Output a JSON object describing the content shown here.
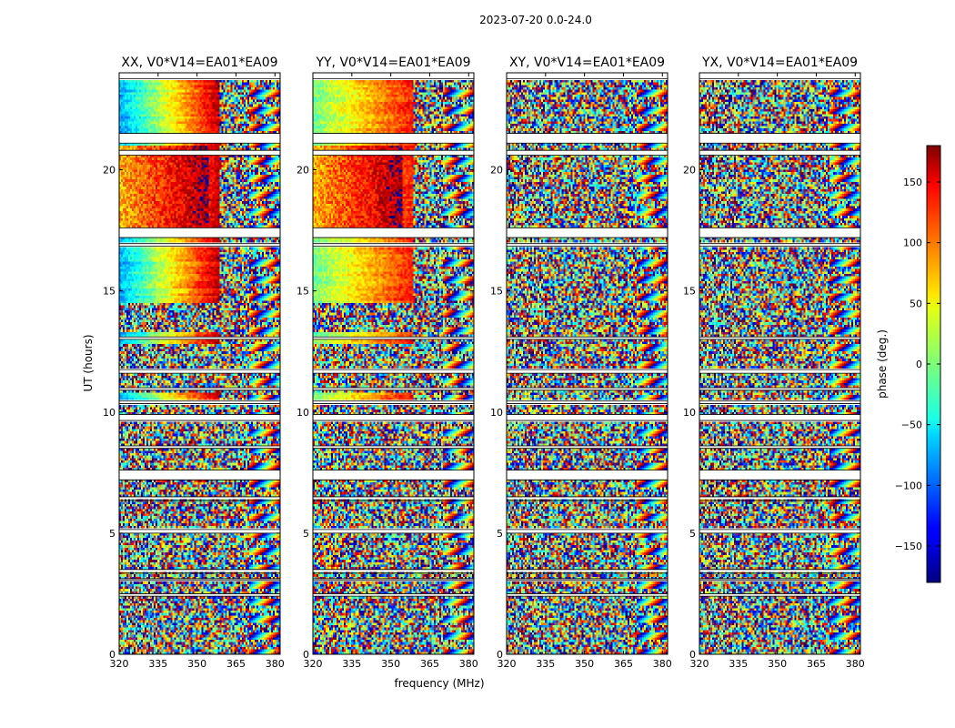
{
  "suptitle": "2023-07-20 0.0-24.0",
  "chart_data": {
    "type": "heatmap",
    "x_label": "frequency (MHz)",
    "y_label": "UT (hours)",
    "xlim": [
      320,
      382
    ],
    "ylim": [
      0,
      24
    ],
    "x_ticks": [
      320,
      335,
      350,
      365,
      380
    ],
    "y_ticks": [
      0,
      5,
      10,
      15,
      20
    ],
    "panels": [
      {
        "title": "XX, V0*V14=EA01*EA09"
      },
      {
        "title": "YY, V0*V14=EA01*EA09"
      },
      {
        "title": "XY, V0*V14=EA01*EA09"
      },
      {
        "title": "YX, V0*V14=EA01*EA09"
      }
    ],
    "colorbar": {
      "label": "phase (deg.)",
      "range": [
        -180,
        180
      ],
      "ticks": [
        150,
        100,
        50,
        0,
        -50,
        -100,
        -150
      ],
      "tick_labels": [
        "150",
        "100",
        "50",
        "0",
        "−50",
        "−100",
        "−150"
      ],
      "colormap": "jet"
    },
    "gaps_hours": [
      [
        23.75,
        24.0
      ],
      [
        21.1,
        21.5
      ],
      [
        20.6,
        20.8
      ],
      [
        17.2,
        17.6
      ],
      [
        16.85,
        16.95
      ],
      [
        13.0,
        13.1
      ],
      [
        11.6,
        11.75
      ],
      [
        10.9,
        11.0
      ],
      [
        10.35,
        10.45
      ],
      [
        9.65,
        9.9
      ],
      [
        8.5,
        8.6
      ],
      [
        7.2,
        7.6
      ],
      [
        6.35,
        6.5
      ],
      [
        5.0,
        5.15
      ],
      [
        3.35,
        3.5
      ],
      [
        3.05,
        3.12
      ],
      [
        2.4,
        2.5
      ]
    ]
  }
}
